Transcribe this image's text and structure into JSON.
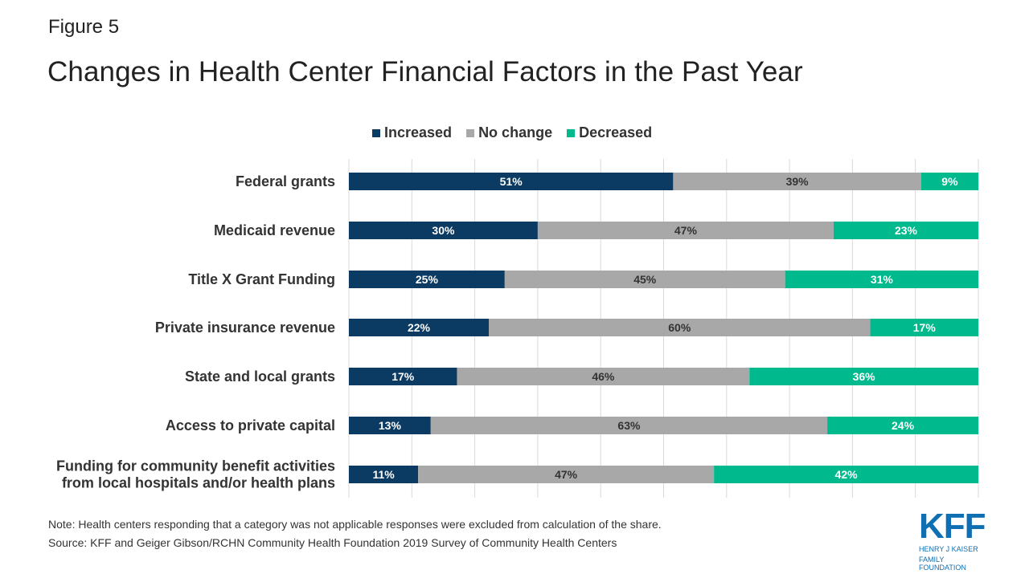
{
  "figure_label": "Figure 5",
  "title": "Changes in Health Center Financial Factors in the Past Year",
  "note": "Note: Health centers responding that a category was not applicable responses were excluded from calculation of the share.",
  "source": "Source: KFF and Geiger Gibson/RCHN Community Health Foundation 2019 Survey of Community Health Centers",
  "logo": {
    "main": "KFF",
    "line1": "HENRY J KAISER",
    "line2": "FAMILY FOUNDATION"
  },
  "colors": {
    "increased": "#0b3a62",
    "no_change": "#a8a8a8",
    "decreased": "#00b98d",
    "grid": "#d9d9d9",
    "logo": "#0f6fb3"
  },
  "chart_data": {
    "type": "bar",
    "orientation": "horizontal",
    "stacked": true,
    "xlim": [
      0,
      100
    ],
    "grid": true,
    "legend_position": "top",
    "categories": [
      [
        "Federal grants"
      ],
      [
        "Medicaid revenue"
      ],
      [
        "Title X Grant Funding"
      ],
      [
        "Private insurance revenue"
      ],
      [
        "State and local grants"
      ],
      [
        "Access to private capital"
      ],
      [
        "Funding for community benefit activities",
        "from local hospitals and/or health plans"
      ]
    ],
    "series": [
      {
        "name": "Increased",
        "color": "#0b3a62",
        "values": [
          51,
          30,
          25,
          22,
          17,
          13,
          11
        ]
      },
      {
        "name": "No change",
        "color": "#a8a8a8",
        "values": [
          39,
          47,
          45,
          60,
          46,
          63,
          47
        ]
      },
      {
        "name": "Decreased",
        "color": "#00b98d",
        "values": [
          9,
          23,
          31,
          17,
          36,
          24,
          42
        ]
      }
    ]
  }
}
